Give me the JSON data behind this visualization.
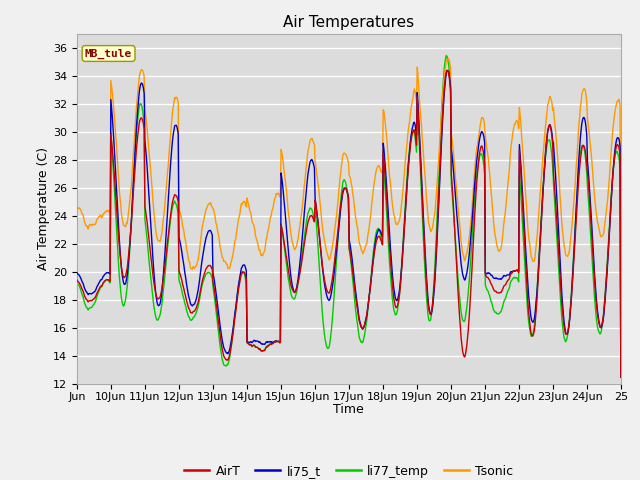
{
  "title": "Air Temperatures",
  "xlabel": "Time",
  "ylabel": "Air Temperature (C)",
  "annotation": "MB_tule",
  "ylim": [
    12,
    37
  ],
  "yticks": [
    12,
    14,
    16,
    18,
    20,
    22,
    24,
    26,
    28,
    30,
    32,
    34,
    36
  ],
  "x_labels": [
    "Jun",
    "10Jun",
    "11Jun",
    "12Jun",
    "13Jun",
    "14Jun",
    "15Jun",
    "16Jun",
    "17Jun",
    "18Jun",
    "19Jun",
    "20Jun",
    "21Jun",
    "22Jun",
    "23Jun",
    "24Jun",
    "25"
  ],
  "series_colors": {
    "AirT": "#cc0000",
    "li75_t": "#0000cc",
    "li77_temp": "#00cc00",
    "Tsonic": "#ff9900"
  },
  "plot_bg_color": "#dcdcdc",
  "grid_color": "#ffffff",
  "title_fontsize": 11,
  "axis_label_fontsize": 9,
  "tick_fontsize": 8,
  "legend_fontsize": 9,
  "figsize": [
    6.4,
    4.8
  ],
  "dpi": 100
}
